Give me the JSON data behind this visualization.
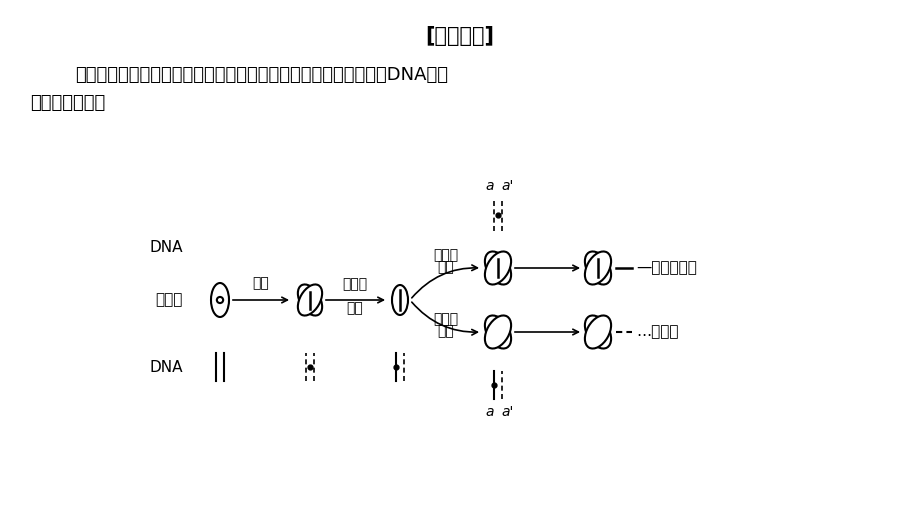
{
  "title": "[技法指导]",
  "para1": "解答此类问题的关键是构建细胞分裂过程模型图，并完成染色体与DNA的转",
  "para2": "据。具体如下：",
  "label_chrom": "染色体",
  "label_dna": "DNA",
  "label_copy": "复制",
  "label_first": "第一次",
  "label_first2": "分裂",
  "label_second": "第二次",
  "label_second2": "分裂",
  "label_isotope": "—同位素标记",
  "label_unlabeled": "…未标记",
  "label_a": "a",
  "label_ap": "a'",
  "bg_color": "#ffffff"
}
